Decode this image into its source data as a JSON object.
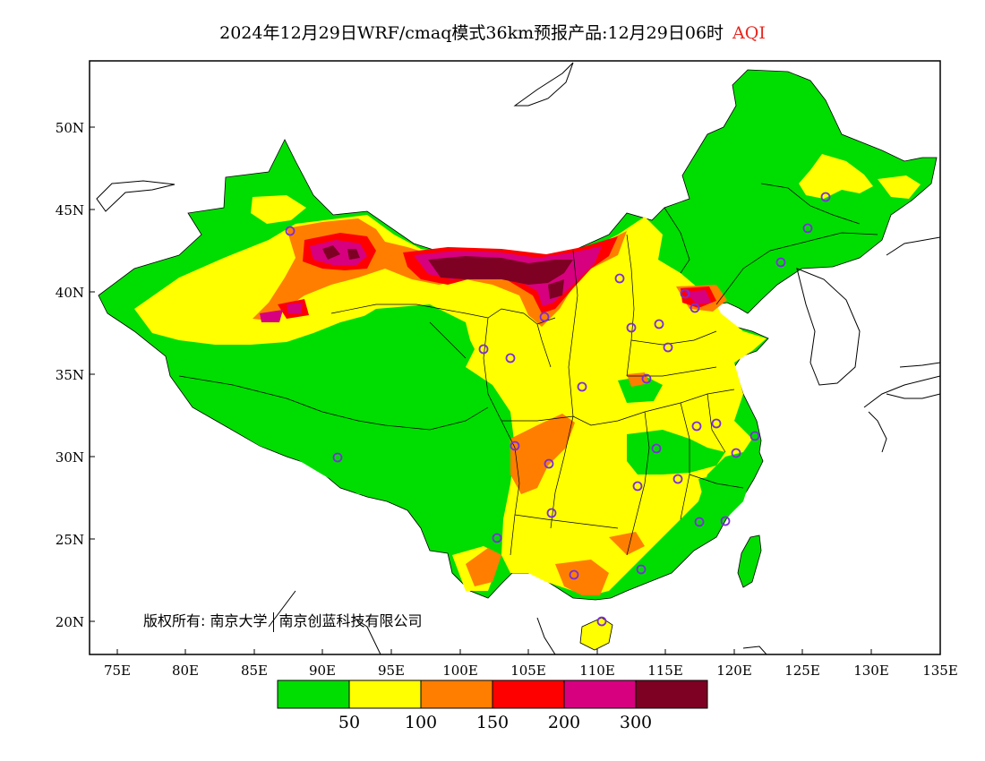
{
  "title": {
    "main": "2024年12月29日WRF/cmaq模式36km预报产品:12月29日06时",
    "variable": "AQI"
  },
  "copyright": {
    "label": "版权所有:",
    "org1": "南京大学",
    "org2": "南京创蓝科技有限公司"
  },
  "map": {
    "lon_range": [
      73,
      135
    ],
    "lat_range": [
      18,
      54
    ],
    "lon_ticks": [
      "75E",
      "80E",
      "85E",
      "90E",
      "95E",
      "100E",
      "105E",
      "110E",
      "115E",
      "120E",
      "125E",
      "130E",
      "135E"
    ],
    "lat_ticks": [
      "20N",
      "25N",
      "30N",
      "35N",
      "40N",
      "45N",
      "50N"
    ],
    "land_color": "#00dd00",
    "station_marker": "circle-icon",
    "station_color": "#7b2fd8"
  },
  "legend": {
    "colors": [
      "#00dd00",
      "#ffff00",
      "#ff7e00",
      "#ff0000",
      "#d7007f",
      "#7e0023"
    ],
    "labels": [
      "50",
      "100",
      "150",
      "200",
      "300"
    ]
  }
}
